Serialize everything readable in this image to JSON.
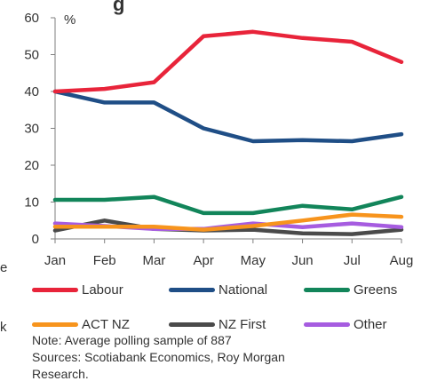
{
  "page": {
    "fragments": {
      "top_title": "g",
      "left_e": "e",
      "left_k": "k"
    }
  },
  "chart_data": {
    "type": "line",
    "categories": [
      "Jan",
      "Feb",
      "Mar",
      "Apr",
      "May",
      "Jun",
      "Jul",
      "Aug"
    ],
    "ylabel": "%",
    "ylim": [
      0,
      60
    ],
    "yticks": [
      0,
      10,
      20,
      30,
      40,
      50,
      60
    ],
    "grid": false,
    "legend_position": "bottom",
    "series": [
      {
        "name": "Labour",
        "color": "#e8243a",
        "values": [
          40,
          40.7,
          42.5,
          55,
          56.2,
          54.5,
          53.5,
          48
        ]
      },
      {
        "name": "National",
        "color": "#1f4e86",
        "values": [
          40,
          37,
          37,
          30,
          26.5,
          26.8,
          26.5,
          28.4
        ]
      },
      {
        "name": "Greens",
        "color": "#12855a",
        "values": [
          10.6,
          10.6,
          11.4,
          7,
          7,
          9,
          8,
          11.4
        ]
      },
      {
        "name": "ACT NZ",
        "color": "#f7941d",
        "values": [
          3.3,
          3.3,
          3.3,
          2.5,
          3.5,
          5,
          6.6,
          6
        ]
      },
      {
        "name": "NZ First",
        "color": "#4a4a4a",
        "values": [
          2.3,
          5,
          2.7,
          2.3,
          2.5,
          1.5,
          1.3,
          2.5
        ]
      },
      {
        "name": "Other",
        "color": "#a65ce0",
        "values": [
          4.2,
          3.5,
          2.7,
          2.7,
          4.2,
          3.2,
          4.2,
          3.2
        ]
      }
    ]
  },
  "notes": {
    "line1": "Note: Average polling sample of 887",
    "line2": "Sources: Scotiabank Economics, Roy Morgan",
    "line3": "Research."
  }
}
